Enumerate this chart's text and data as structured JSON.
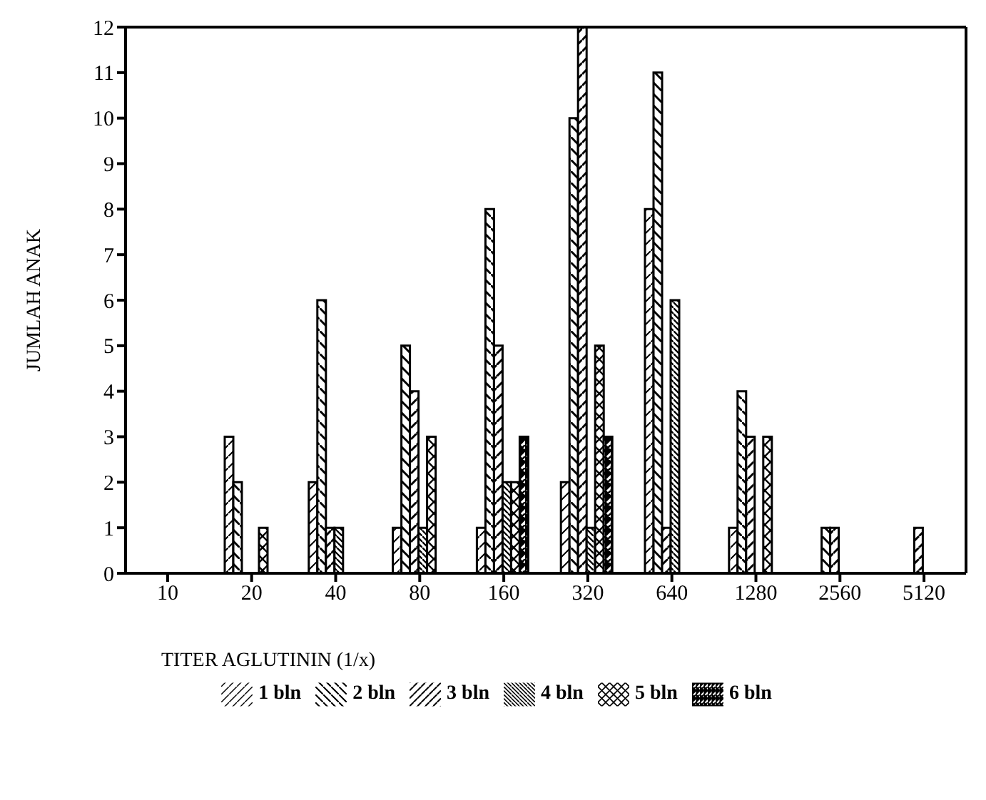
{
  "chart_data": {
    "type": "bar",
    "xlabel": "TITER AGLUTININ  (1/x)",
    "ylabel": "JUMLAH ANAK",
    "categories": [
      "10",
      "20",
      "40",
      "80",
      "160",
      "320",
      "640",
      "1280",
      "2560",
      "5120"
    ],
    "series": [
      {
        "name": "1 bln",
        "color": "#000000",
        "values": [
          null,
          3,
          2,
          1,
          1,
          2,
          8,
          1,
          null,
          null
        ]
      },
      {
        "name": "2 bln",
        "color": "#000000",
        "values": [
          null,
          2,
          6,
          5,
          8,
          10,
          11,
          4,
          1,
          null
        ]
      },
      {
        "name": "3 bln",
        "color": "#000000",
        "values": [
          null,
          null,
          1,
          4,
          5,
          12,
          1,
          3,
          1,
          1
        ]
      },
      {
        "name": "4 bln",
        "color": "#000000",
        "values": [
          null,
          null,
          1,
          1,
          2,
          1,
          6,
          null,
          null,
          null
        ]
      },
      {
        "name": "5 bln",
        "color": "#000000",
        "values": [
          null,
          1,
          null,
          3,
          2,
          5,
          null,
          3,
          null,
          null
        ]
      },
      {
        "name": "6 bln",
        "color": "#000000",
        "values": [
          null,
          null,
          null,
          null,
          3,
          3,
          null,
          null,
          null,
          null
        ]
      }
    ],
    "ylim": [
      0,
      12
    ],
    "yticks": [
      0,
      1,
      2,
      3,
      4,
      5,
      6,
      7,
      8,
      9,
      10,
      11,
      12
    ],
    "legend": "bottom"
  }
}
